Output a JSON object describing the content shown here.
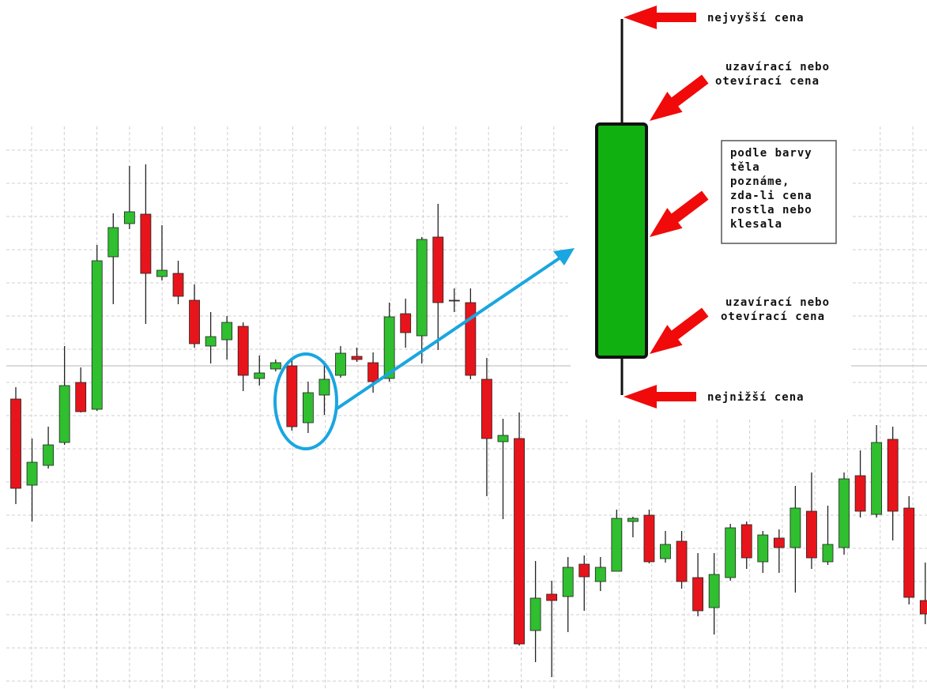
{
  "chart_data": {
    "type": "candlestick",
    "ylim": [
      0,
      872
    ],
    "up_color": "#2fbf2f",
    "down_color": "#e8141b",
    "open": [
      367,
      258,
      283,
      312,
      388,
      354,
      547,
      589,
      601,
      522,
      526,
      492,
      434,
      442,
      459,
      393,
      405,
      409,
      337,
      372,
      397,
      421,
      413,
      393,
      475,
      447,
      572,
      492,
      489,
      392,
      313,
      317,
      74,
      120,
      117,
      158,
      136,
      149,
      212,
      220,
      165,
      187,
      141,
      103,
      141,
      208,
      161,
      191,
      179,
      225,
      161,
      179,
      270,
      221,
      316,
      229,
      112
    ],
    "high": [
      382,
      317,
      332,
      434,
      407,
      562,
      602,
      662,
      664,
      587,
      542,
      512,
      477,
      472,
      464,
      422,
      417,
      417,
      389,
      412,
      434,
      432,
      426,
      489,
      494,
      572,
      614,
      507,
      507,
      419,
      342,
      350,
      162,
      137,
      167,
      169,
      167,
      227,
      218,
      227,
      200,
      200,
      172,
      172,
      209,
      212,
      200,
      202,
      257,
      274,
      232,
      274,
      302,
      334,
      332,
      244,
      160
    ],
    "low": [
      234,
      212,
      279,
      309,
      350,
      352,
      487,
      582,
      462,
      517,
      487,
      432,
      412,
      417,
      377,
      384,
      402,
      327,
      324,
      347,
      394,
      414,
      375,
      389,
      432,
      412,
      429,
      477,
      392,
      244,
      215,
      55,
      34,
      15,
      72,
      99,
      124,
      149,
      192,
      159,
      160,
      127,
      92,
      69,
      137,
      152,
      147,
      147,
      122,
      152,
      157,
      170,
      217,
      217,
      188,
      107,
      82
    ],
    "close": [
      254,
      287,
      309,
      384,
      351,
      542,
      584,
      604,
      526,
      530,
      497,
      437,
      446,
      464,
      397,
      400,
      413,
      332,
      375,
      392,
      425,
      417,
      389,
      471,
      451,
      569,
      489,
      491,
      397,
      317,
      321,
      57,
      115,
      112,
      154,
      142,
      154,
      216,
      216,
      161,
      183,
      136,
      99,
      145,
      204,
      166,
      195,
      179,
      229,
      166,
      183,
      266,
      225,
      312,
      225,
      116,
      95
    ],
    "annotations": {
      "highest": "nejvyšší cena",
      "upper_body": [
        "uzavírací nebo",
        "otevírací cena"
      ],
      "body_note": [
        "podle barvy",
        "těla",
        "poznáme,",
        "zda-li cena",
        "rostla nebo",
        "klesala"
      ],
      "lower_body": [
        "uzavírací nebo",
        "otevírací cena"
      ],
      "lowest": "nejnižší cena"
    }
  }
}
